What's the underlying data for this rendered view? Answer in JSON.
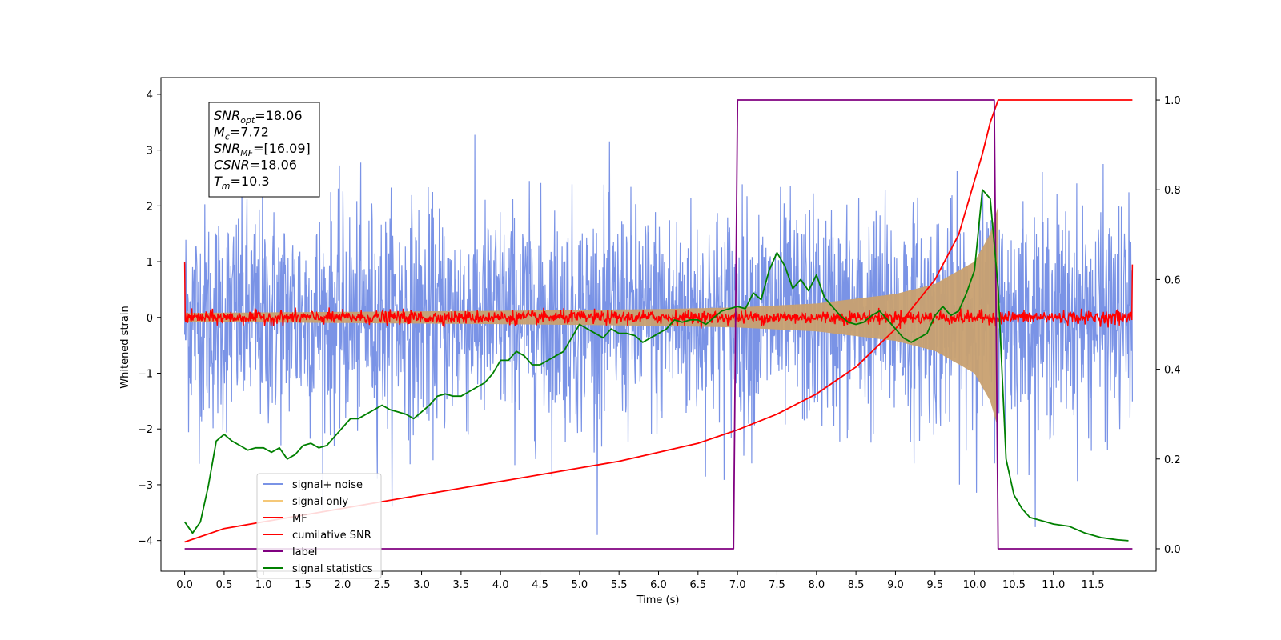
{
  "chart_data": {
    "type": "line",
    "xlabel": "Time (s)",
    "ylabel": "Whitened strain",
    "xlim": [
      -0.3,
      12.3
    ],
    "ylim": [
      -4.55,
      4.3
    ],
    "ylim_right": [
      -0.05,
      1.05
    ],
    "xticks": [
      "0.0",
      "0.5",
      "1.0",
      "1.5",
      "2.0",
      "2.5",
      "3.0",
      "3.5",
      "4.0",
      "4.5",
      "5.0",
      "5.5",
      "6.0",
      "6.5",
      "7.0",
      "7.5",
      "8.0",
      "8.5",
      "9.0",
      "9.5",
      "10.0",
      "10.5",
      "11.0",
      "11.5"
    ],
    "yticks_left": [
      "4",
      "3",
      "2",
      "1",
      "0",
      "−1",
      "−2",
      "−3",
      "−4"
    ],
    "yticks_right": [
      "1.0",
      "0.8",
      "0.6",
      "0.4",
      "0.2",
      "0.0"
    ],
    "info_box": [
      {
        "main": "SNR",
        "sub": "opt",
        "rest": "=18.06"
      },
      {
        "main": "M",
        "sub": "c",
        "rest": "=7.72"
      },
      {
        "main": "SNR",
        "sub": "MF",
        "rest": "=[16.09]"
      },
      {
        "main": "CSNR",
        "sub": "",
        "rest": "=18.06"
      },
      {
        "main": "T",
        "sub": "m",
        "rest": "=10.3"
      }
    ],
    "legend": {
      "placement": "lower-left",
      "entries": [
        {
          "label": "signal+ noise",
          "color": "#7a93e6"
        },
        {
          "label": "signal only",
          "color": "#f5c878"
        },
        {
          "label": "MF",
          "color": "#ff0000"
        },
        {
          "label": "cumilative SNR",
          "color": "#ff0000"
        },
        {
          "label": "label",
          "color": "#800080"
        },
        {
          "label": "signal statistics",
          "color": "#008000"
        }
      ]
    },
    "series": [
      {
        "name": "signal+ noise",
        "axis": "left",
        "description_values": "noise band approx ±2.2 std envelope, extremes to ±3.9",
        "x_range": [
          0,
          12.0
        ],
        "amplitude": 1.0,
        "color": "#7a93e6"
      },
      {
        "name": "signal only",
        "axis": "left",
        "x_range": [
          0,
          10.3
        ],
        "envelope": [
          [
            0,
            0.08
          ],
          [
            2,
            0.1
          ],
          [
            4,
            0.12
          ],
          [
            6,
            0.15
          ],
          [
            7,
            0.18
          ],
          [
            8,
            0.25
          ],
          [
            9,
            0.42
          ],
          [
            9.5,
            0.6
          ],
          [
            10,
            1.0
          ],
          [
            10.2,
            1.5
          ],
          [
            10.3,
            2.0
          ]
        ],
        "color": "#f5c878"
      },
      {
        "name": "MF",
        "axis": "left",
        "x_range": [
          0,
          12.0
        ],
        "start": 1.0,
        "end": 0.95,
        "noise": 0.06,
        "color": "#ff0000"
      },
      {
        "name": "cumilative SNR",
        "axis": "right",
        "x": [
          0,
          0.5,
          1,
          1.5,
          2,
          2.5,
          3,
          3.5,
          4,
          4.5,
          5,
          5.5,
          6,
          6.5,
          7,
          7.5,
          8,
          8.5,
          9,
          9.5,
          9.8,
          10,
          10.1,
          10.2,
          10.3,
          12.0
        ],
        "y": [
          0.015,
          0.045,
          0.06,
          0.075,
          0.09,
          0.105,
          0.12,
          0.135,
          0.15,
          0.165,
          0.18,
          0.195,
          0.215,
          0.235,
          0.265,
          0.3,
          0.345,
          0.405,
          0.49,
          0.6,
          0.7,
          0.82,
          0.88,
          0.95,
          1.0,
          1.0
        ],
        "color": "#ff0000"
      },
      {
        "name": "label",
        "axis": "right",
        "x": [
          0,
          6.95,
          7.0,
          10.25,
          10.3,
          12.0
        ],
        "y": [
          0,
          0,
          1,
          1,
          0,
          0
        ],
        "color": "#800080"
      },
      {
        "name": "signal statistics",
        "axis": "right",
        "x": [
          0,
          0.1,
          0.2,
          0.3,
          0.4,
          0.5,
          0.6,
          0.7,
          0.8,
          0.9,
          1.0,
          1.1,
          1.2,
          1.3,
          1.4,
          1.5,
          1.6,
          1.7,
          1.8,
          1.9,
          2.0,
          2.1,
          2.2,
          2.3,
          2.4,
          2.5,
          2.6,
          2.7,
          2.8,
          2.9,
          3.0,
          3.1,
          3.2,
          3.3,
          3.4,
          3.5,
          3.6,
          3.7,
          3.8,
          3.9,
          4.0,
          4.1,
          4.2,
          4.3,
          4.4,
          4.5,
          4.6,
          4.7,
          4.8,
          4.9,
          5.0,
          5.1,
          5.2,
          5.3,
          5.4,
          5.5,
          5.6,
          5.7,
          5.8,
          5.9,
          6.0,
          6.1,
          6.2,
          6.3,
          6.4,
          6.5,
          6.6,
          6.7,
          6.8,
          6.9,
          7.0,
          7.1,
          7.2,
          7.3,
          7.4,
          7.5,
          7.6,
          7.7,
          7.8,
          7.9,
          8.0,
          8.1,
          8.2,
          8.3,
          8.4,
          8.5,
          8.6,
          8.7,
          8.8,
          8.9,
          9.0,
          9.1,
          9.2,
          9.3,
          9.4,
          9.5,
          9.6,
          9.7,
          9.8,
          9.9,
          10.0,
          10.1,
          10.2,
          10.3,
          10.4,
          10.5,
          10.6,
          10.7,
          10.8,
          10.9,
          11.0,
          11.2,
          11.4,
          11.6,
          11.8,
          11.95
        ],
        "y": [
          0.06,
          0.035,
          0.06,
          0.14,
          0.24,
          0.255,
          0.24,
          0.23,
          0.22,
          0.225,
          0.225,
          0.215,
          0.225,
          0.2,
          0.21,
          0.23,
          0.235,
          0.225,
          0.23,
          0.25,
          0.27,
          0.29,
          0.29,
          0.3,
          0.31,
          0.32,
          0.31,
          0.305,
          0.3,
          0.29,
          0.305,
          0.32,
          0.34,
          0.345,
          0.34,
          0.34,
          0.35,
          0.36,
          0.37,
          0.39,
          0.42,
          0.42,
          0.44,
          0.43,
          0.41,
          0.41,
          0.42,
          0.43,
          0.44,
          0.47,
          0.5,
          0.49,
          0.48,
          0.47,
          0.49,
          0.48,
          0.48,
          0.475,
          0.46,
          0.47,
          0.48,
          0.49,
          0.51,
          0.505,
          0.51,
          0.51,
          0.5,
          0.515,
          0.53,
          0.535,
          0.54,
          0.535,
          0.57,
          0.555,
          0.62,
          0.66,
          0.63,
          0.58,
          0.6,
          0.575,
          0.61,
          0.56,
          0.54,
          0.52,
          0.505,
          0.5,
          0.505,
          0.52,
          0.53,
          0.51,
          0.49,
          0.47,
          0.46,
          0.47,
          0.48,
          0.52,
          0.54,
          0.52,
          0.53,
          0.57,
          0.62,
          0.8,
          0.78,
          0.58,
          0.2,
          0.12,
          0.09,
          0.07,
          0.065,
          0.06,
          0.055,
          0.05,
          0.035,
          0.025,
          0.02,
          0.018
        ],
        "color": "#008000"
      }
    ]
  }
}
